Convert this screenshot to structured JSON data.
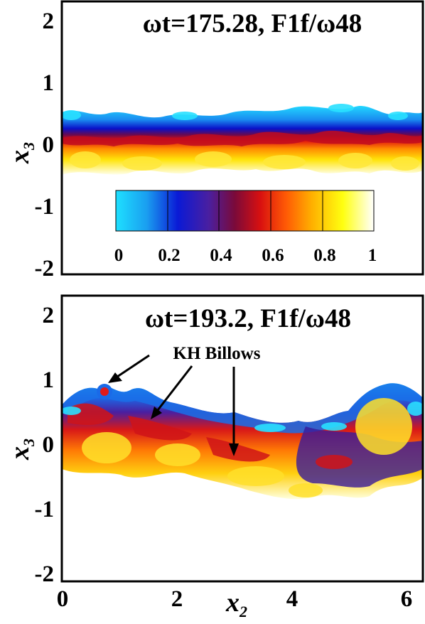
{
  "chart_data": [
    {
      "type": "heatmap",
      "title": "ωt=175.28, F1f/ω48",
      "xlabel": "",
      "ylabel": "x3",
      "xlim": [
        0,
        6.28
      ],
      "ylim": [
        -2.2,
        2.2
      ],
      "yticks": [
        "2",
        "1",
        "0",
        "-1",
        "-2"
      ],
      "colorbar": {
        "ticks": [
          "0",
          "0.2",
          "0.4",
          "0.6",
          "0.8",
          "1"
        ],
        "range": [
          0,
          1
        ],
        "colors": [
          "#1ee0ff",
          "#1565e8",
          "#0a0acf",
          "#4a1fa0",
          "#7a0a3a",
          "#d01010",
          "#ff5a05",
          "#ffb000",
          "#ffff10",
          "#ffffff"
        ]
      },
      "mixing_layer": {
        "upper_edge_approx": 0.4,
        "lower_edge_approx": -0.45
      }
    },
    {
      "type": "heatmap",
      "title": "ωt=193.2, F1f/ω48",
      "xlabel": "x2",
      "ylabel": "x3",
      "xlim": [
        0,
        6.28
      ],
      "ylim": [
        -2.2,
        2.2
      ],
      "xticks": [
        "0",
        "2",
        "4",
        "6"
      ],
      "yticks": [
        "2",
        "1",
        "0",
        "-1",
        "-2"
      ],
      "annotations": [
        {
          "text": "KH Billows"
        }
      ],
      "mixing_layer": {
        "upper_edge_approx": 0.9,
        "lower_edge_approx": -1.0
      }
    }
  ]
}
